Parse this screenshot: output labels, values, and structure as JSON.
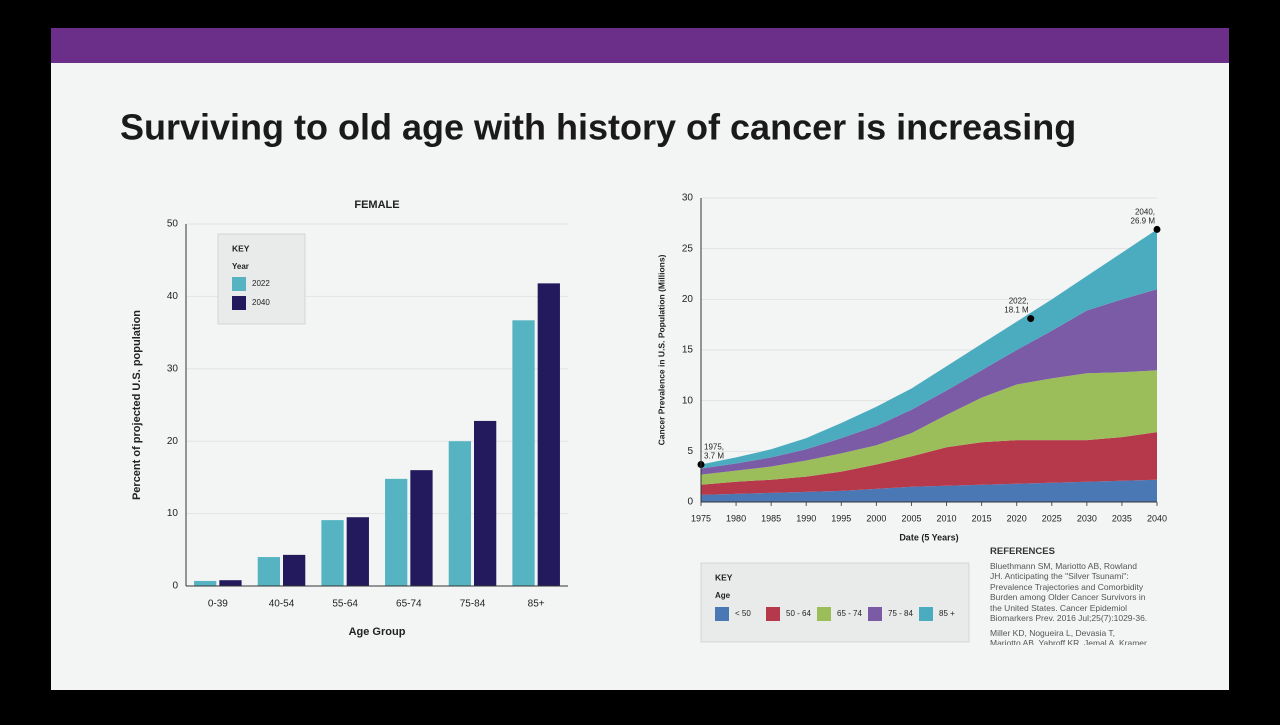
{
  "slide": {
    "title": "Surviving to old age with history of cancer is increasing"
  },
  "chart_data": [
    {
      "type": "bar",
      "title": "FEMALE",
      "ylabel": "Percent of projected U.S. population",
      "xlabel": "Age Group",
      "legend_title": "KEY",
      "legend_subtitle": "Year",
      "categories": [
        "0-39",
        "40-54",
        "55-64",
        "65-74",
        "75-84",
        "85+"
      ],
      "series": [
        {
          "name": "2022",
          "color": "#56b4c2",
          "values": [
            0.7,
            4.0,
            9.1,
            14.8,
            20.0,
            36.7
          ]
        },
        {
          "name": "2040",
          "color": "#221a5c",
          "values": [
            0.8,
            4.3,
            9.5,
            16.0,
            22.8,
            41.8
          ]
        }
      ],
      "ylim": [
        0,
        50
      ],
      "yticks": [
        0,
        10,
        20,
        30,
        40,
        50
      ],
      "grid": true
    },
    {
      "type": "area",
      "stacked": true,
      "ylabel": "Cancer Prevalence in U.S. Population (Millions)",
      "xlabel": "Date (5 Years)",
      "legend_title": "KEY",
      "legend_subtitle": "Age",
      "x": [
        1975,
        1980,
        1985,
        1990,
        1995,
        2000,
        2005,
        2010,
        2015,
        2020,
        2025,
        2030,
        2035,
        2040
      ],
      "series": [
        {
          "name": "< 50",
          "color": "#4a78b5",
          "values": [
            0.7,
            0.8,
            0.9,
            1.0,
            1.1,
            1.3,
            1.5,
            1.6,
            1.7,
            1.8,
            1.9,
            2.0,
            2.1,
            2.2
          ]
        },
        {
          "name": "50 - 64",
          "color": "#b5394a",
          "values": [
            1.0,
            1.2,
            1.3,
            1.5,
            1.9,
            2.4,
            3.0,
            3.8,
            4.2,
            4.3,
            4.2,
            4.1,
            4.3,
            4.7
          ]
        },
        {
          "name": "65 - 74",
          "color": "#9cbe5a",
          "values": [
            1.0,
            1.1,
            1.3,
            1.6,
            1.8,
            1.9,
            2.3,
            3.2,
            4.4,
            5.5,
            6.1,
            6.6,
            6.4,
            6.1
          ]
        },
        {
          "name": "75 - 84",
          "color": "#7b5aa6",
          "values": [
            0.6,
            0.7,
            0.9,
            1.1,
            1.5,
            1.9,
            2.3,
            2.4,
            2.7,
            3.4,
            4.7,
            6.2,
            7.2,
            8.0
          ]
        },
        {
          "name": "85 +",
          "color": "#4bacc0",
          "values": [
            0.4,
            0.6,
            0.8,
            1.1,
            1.5,
            1.9,
            2.1,
            2.4,
            2.6,
            2.8,
            3.1,
            3.4,
            4.6,
            5.9
          ]
        }
      ],
      "annotations": [
        {
          "x": 1975,
          "y": 3.7,
          "label": [
            "1975,",
            "3.7 M"
          ]
        },
        {
          "x": 2022,
          "y": 18.1,
          "label": [
            "2022,",
            "18.1 M"
          ]
        },
        {
          "x": 2040,
          "y": 26.9,
          "label": [
            "2040,",
            "26.9 M"
          ]
        }
      ],
      "xlim": [
        1975,
        2040
      ],
      "xticks": [
        1975,
        1980,
        1985,
        1990,
        1995,
        2000,
        2005,
        2010,
        2015,
        2020,
        2025,
        2030,
        2035,
        2040
      ],
      "ylim": [
        0,
        30
      ],
      "yticks": [
        0,
        5,
        10,
        15,
        20,
        25,
        30
      ],
      "grid": true
    }
  ],
  "references": {
    "title": "REFERENCES",
    "items": [
      "Bluethmann SM, Mariotto AB, Rowland JH. Anticipating the \"Silver Tsunami\": Prevalence Trajectories and Comorbidity Burden among Older Cancer Survivors in the United States. Cancer Epidemiol Biomarkers Prev. 2016 Jul;25(7):1029-36.",
      "Miller KD, Nogueira L, Devasia T, Mariotto AB, Yabroff KR, Jemal A, Kramer J, Siegel RL"
    ]
  }
}
